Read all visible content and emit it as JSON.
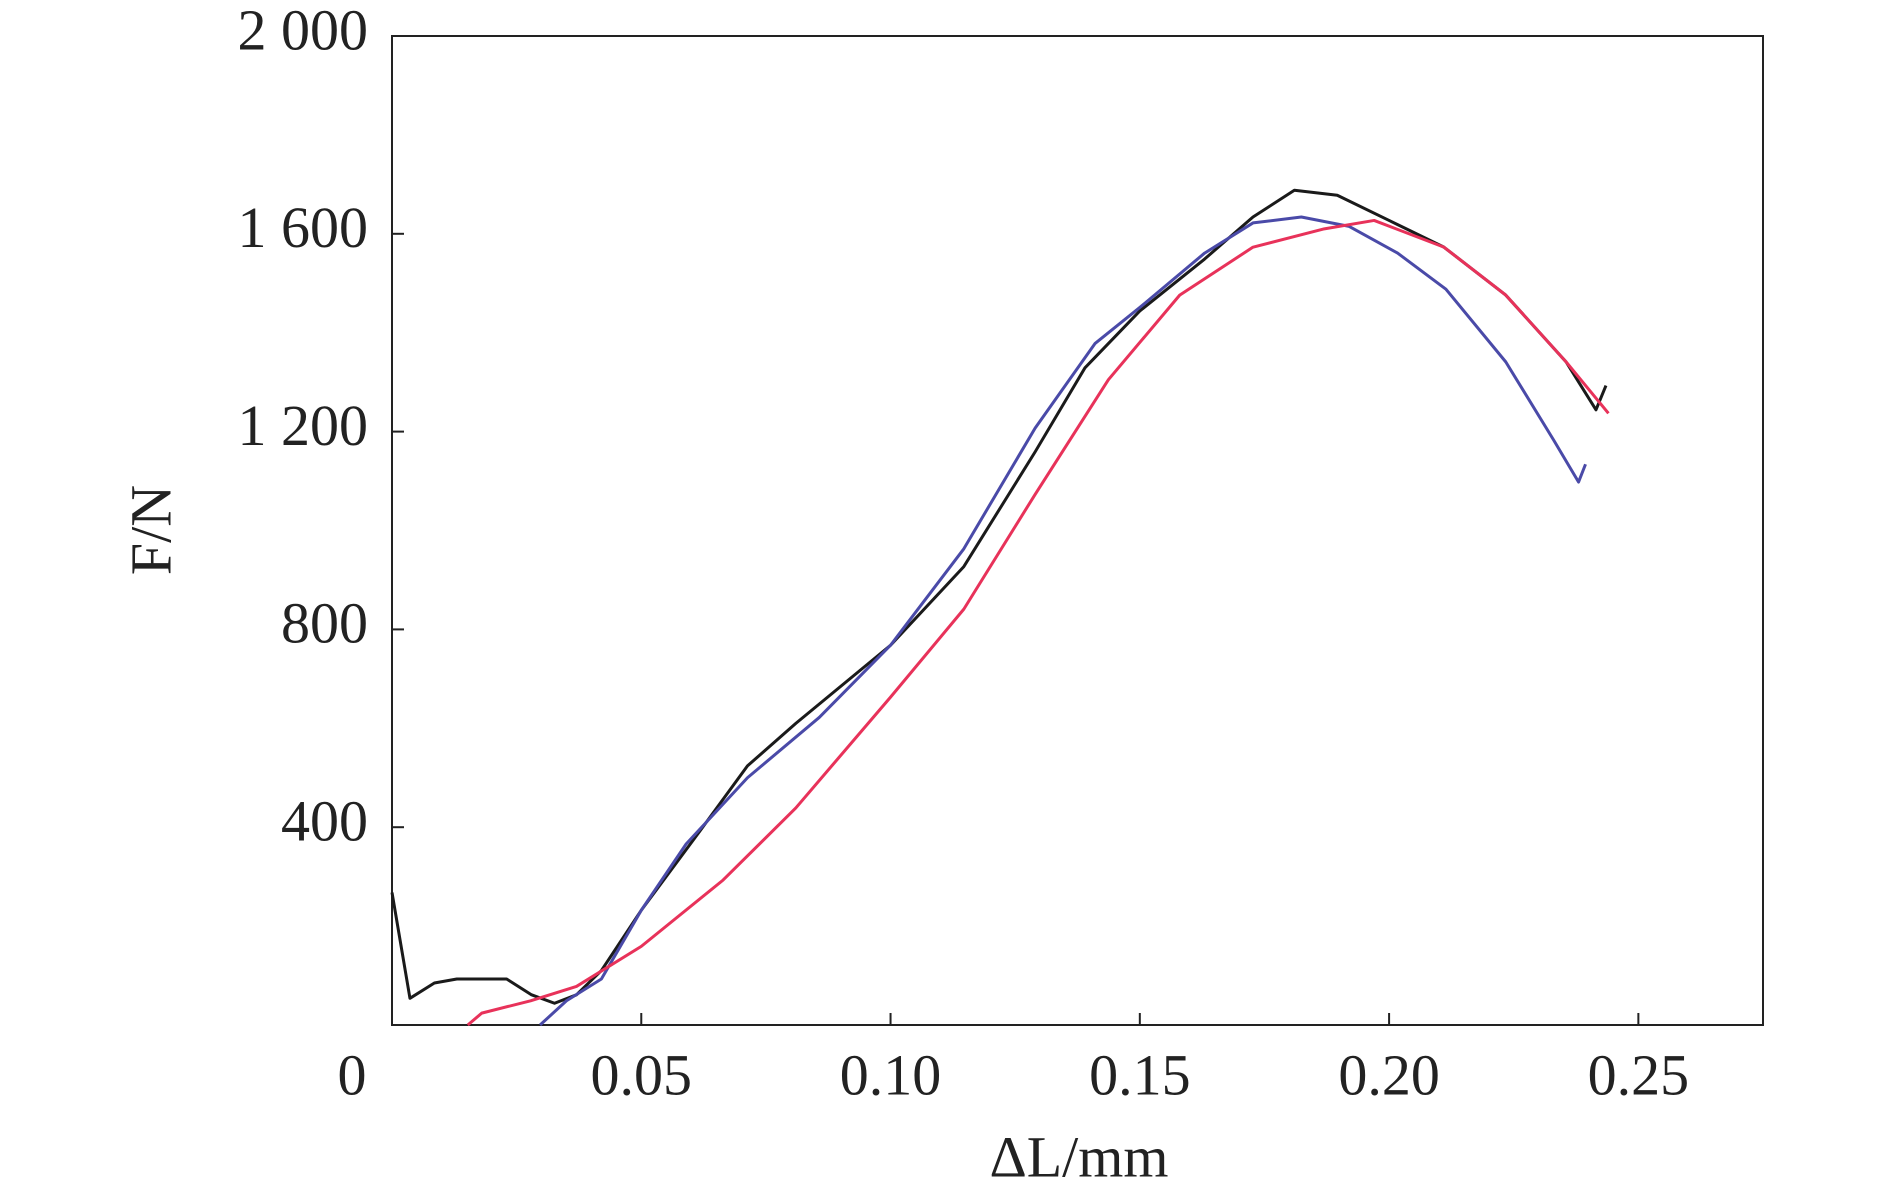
{
  "chart_data": {
    "type": "line",
    "xlabel": "ΔL/mm",
    "ylabel": "F/N",
    "xlim": [
      0,
      0.275
    ],
    "ylim": [
      0,
      2000
    ],
    "xticks": [
      0,
      0.05,
      {
        "value": 0.1,
        "label": "0.10"
      },
      0.15,
      {
        "value": 0.2,
        "label": "0.20"
      },
      0.25
    ],
    "yticks": [
      400,
      800,
      {
        "value": 1200,
        "label": "1 200"
      },
      {
        "value": 1600,
        "label": "1 600"
      },
      {
        "value": 2000,
        "label": "2 000"
      }
    ],
    "series": [
      {
        "color": "#1a1a1a",
        "x": [
          0,
          0.0036,
          0.0085,
          0.013,
          0.023,
          0.028,
          0.0326,
          0.037,
          0.042,
          0.05,
          0.0616,
          0.0713,
          0.081,
          0.1,
          0.1147,
          0.129,
          0.139,
          0.15,
          0.163,
          0.1727,
          0.181,
          0.1896,
          0.2,
          0.211,
          0.2234,
          0.2355,
          0.2415,
          0.2435
        ],
        "values": [
          268,
          54,
          85,
          93,
          93,
          61,
          44,
          61,
          110,
          232,
          390,
          524,
          610,
          768,
          927,
          1159,
          1329,
          1444,
          1549,
          1634,
          1688,
          1678,
          1627,
          1573,
          1476,
          1341,
          1244,
          1293
        ]
      },
      {
        "color": "#4a4aa8",
        "x": [
          0.0297,
          0.035,
          0.042,
          0.05,
          0.059,
          0.0713,
          0.0857,
          0.1,
          0.1147,
          0.129,
          0.141,
          0.15,
          0.163,
          0.1727,
          0.1824,
          0.192,
          0.2017,
          0.2114,
          0.2234,
          0.233,
          0.238,
          0.2394
        ],
        "values": [
          0,
          49,
          93,
          232,
          366,
          500,
          622,
          768,
          963,
          1207,
          1378,
          1451,
          1561,
          1622,
          1634,
          1615,
          1561,
          1488,
          1341,
          1183,
          1098,
          1134
        ]
      },
      {
        "color": "#e8325a",
        "x": [
          0.0152,
          0.018,
          0.0278,
          0.037,
          0.05,
          0.0664,
          0.081,
          0.1,
          0.1147,
          0.129,
          0.1437,
          0.158,
          0.1727,
          0.187,
          0.197,
          0.211,
          0.2234,
          0.2355,
          0.244
        ],
        "values": [
          0,
          24,
          49,
          78,
          159,
          293,
          439,
          663,
          841,
          1073,
          1305,
          1476,
          1573,
          1610,
          1627,
          1573,
          1476,
          1341,
          1237
        ]
      }
    ]
  }
}
